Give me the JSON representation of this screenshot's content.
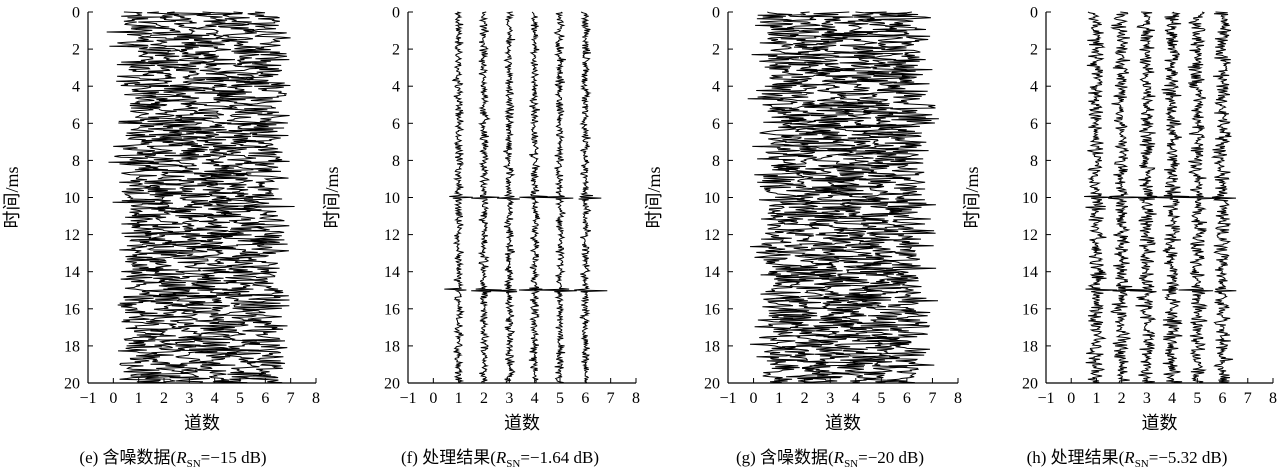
{
  "chart_data": [
    {
      "type": "seismic-wiggle",
      "panel": "e",
      "caption": {
        "prefix": "(e) 含噪数据(",
        "var": "R",
        "sub": "SN",
        "suffix": "=−15 dB)"
      },
      "xlabel": "道数",
      "ylabel": "时间/ms",
      "xlim": [
        -1,
        8
      ],
      "ylim": [
        0,
        20
      ],
      "y_inverted": true,
      "xticks": [
        "−1",
        "0",
        "1",
        "2",
        "3",
        "4",
        "5",
        "6",
        "7",
        "8"
      ],
      "yticks": [
        "0",
        "2",
        "4",
        "6",
        "8",
        "10",
        "12",
        "14",
        "16",
        "18",
        "20"
      ],
      "traces": [
        1,
        2,
        3,
        4,
        5,
        6
      ],
      "noise_level": "high",
      "events": [
        {
          "time": 10,
          "strength": 0.3
        },
        {
          "time": 15,
          "strength": 0.3
        }
      ],
      "seed": 11
    },
    {
      "type": "seismic-wiggle",
      "panel": "f",
      "caption": {
        "prefix": "(f) 处理结果(",
        "var": "R",
        "sub": "SN",
        "suffix": "=−1.64 dB)"
      },
      "xlabel": "道数",
      "ylabel": "时间/ms",
      "xlim": [
        -1,
        8
      ],
      "ylim": [
        0,
        20
      ],
      "y_inverted": true,
      "xticks": [
        "−1",
        "0",
        "1",
        "2",
        "3",
        "4",
        "5",
        "6",
        "7",
        "8"
      ],
      "yticks": [
        "0",
        "2",
        "4",
        "6",
        "8",
        "10",
        "12",
        "14",
        "16",
        "18",
        "20"
      ],
      "traces": [
        1,
        2,
        3,
        4,
        5,
        6
      ],
      "noise_level": "low",
      "events": [
        {
          "time": 10,
          "strength": 1.0
        },
        {
          "time": 15,
          "strength": 1.0
        }
      ],
      "seed": 23
    },
    {
      "type": "seismic-wiggle",
      "panel": "g",
      "caption": {
        "prefix": "(g) 含噪数据(",
        "var": "R",
        "sub": "SN",
        "suffix": "=−20 dB)"
      },
      "xlabel": "道数",
      "ylabel": "时间/ms",
      "xlim": [
        -1,
        8
      ],
      "ylim": [
        0,
        20
      ],
      "y_inverted": true,
      "xticks": [
        "−1",
        "0",
        "1",
        "2",
        "3",
        "4",
        "5",
        "6",
        "7",
        "8"
      ],
      "yticks": [
        "0",
        "2",
        "4",
        "6",
        "8",
        "10",
        "12",
        "14",
        "16",
        "18",
        "20"
      ],
      "traces": [
        1,
        2,
        3,
        4,
        5,
        6
      ],
      "noise_level": "very-high",
      "events": [
        {
          "time": 10,
          "strength": 0.2
        },
        {
          "time": 15,
          "strength": 0.2
        }
      ],
      "seed": 37
    },
    {
      "type": "seismic-wiggle",
      "panel": "h",
      "caption": {
        "prefix": "(h) 处理结果(",
        "var": "R",
        "sub": "SN",
        "suffix": "=−5.32 dB)"
      },
      "xlabel": "道数",
      "ylabel": "时间/ms",
      "xlim": [
        -1,
        8
      ],
      "ylim": [
        0,
        20
      ],
      "y_inverted": true,
      "xticks": [
        "−1",
        "0",
        "1",
        "2",
        "3",
        "4",
        "5",
        "6",
        "7",
        "8"
      ],
      "yticks": [
        "0",
        "2",
        "4",
        "6",
        "8",
        "10",
        "12",
        "14",
        "16",
        "18",
        "20"
      ],
      "traces": [
        1,
        2,
        3,
        4,
        5,
        6
      ],
      "noise_level": "medium",
      "events": [
        {
          "time": 10,
          "strength": 1.0
        },
        {
          "time": 15,
          "strength": 1.0
        }
      ],
      "seed": 53
    }
  ]
}
